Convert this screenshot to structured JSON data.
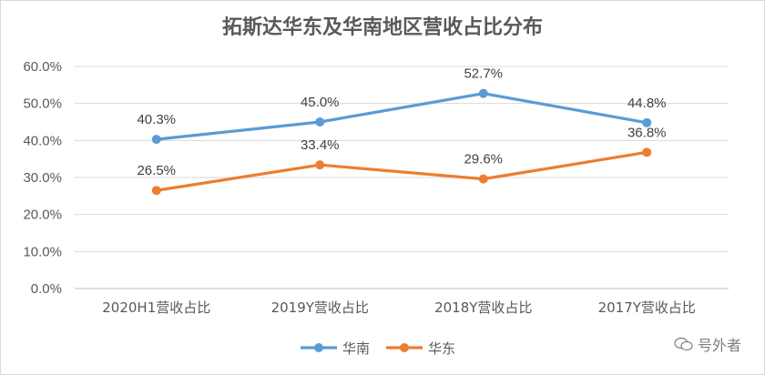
{
  "chart_data": {
    "type": "line",
    "title": "拓斯达华东及华南地区营收占比分布",
    "categories": [
      "2020H1营收占比",
      "2019Y营收占比",
      "2018Y营收占比",
      "2017Y营收占比"
    ],
    "y_ticks": [
      "0.0%",
      "10.0%",
      "20.0%",
      "30.0%",
      "40.0%",
      "50.0%",
      "60.0%"
    ],
    "ylim": [
      0,
      60
    ],
    "grid": true,
    "legend_position": "bottom",
    "series": [
      {
        "name": "华南",
        "color": "#5b9bd5",
        "values": [
          40.3,
          45.0,
          52.7,
          44.8
        ],
        "labels": [
          "40.3%",
          "45.0%",
          "52.7%",
          "44.8%"
        ]
      },
      {
        "name": "华东",
        "color": "#ed7d31",
        "values": [
          26.5,
          33.4,
          29.6,
          36.8
        ],
        "labels": [
          "26.5%",
          "33.4%",
          "29.6%",
          "36.8%"
        ]
      }
    ]
  },
  "watermark": {
    "text": "号外者",
    "icon": "wechat-icon"
  }
}
